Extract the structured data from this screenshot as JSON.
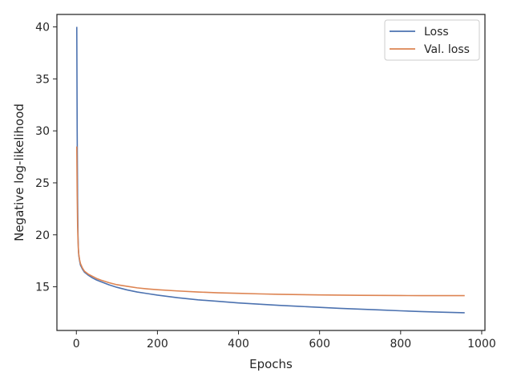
{
  "chart_data": {
    "type": "line",
    "xlabel": "Epochs",
    "ylabel": "Negative log-likelihood",
    "xlim": [
      -48,
      1008
    ],
    "ylim": [
      10.8,
      41.2
    ],
    "xticks": [
      0,
      200,
      400,
      600,
      800,
      1000
    ],
    "yticks": [
      15,
      20,
      25,
      30,
      35,
      40
    ],
    "grid": false,
    "legend_position": "top-right",
    "series": [
      {
        "name": "Loss",
        "color": "#4c72b0",
        "points": [
          [
            1,
            40.0
          ],
          [
            2,
            30.0
          ],
          [
            3,
            23.5
          ],
          [
            4,
            20.0
          ],
          [
            5,
            18.6
          ],
          [
            6,
            18.0
          ],
          [
            8,
            17.5
          ],
          [
            10,
            17.1
          ],
          [
            15,
            16.7
          ],
          [
            20,
            16.4
          ],
          [
            30,
            16.1
          ],
          [
            40,
            15.85
          ],
          [
            50,
            15.65
          ],
          [
            60,
            15.5
          ],
          [
            80,
            15.2
          ],
          [
            100,
            14.95
          ],
          [
            125,
            14.7
          ],
          [
            150,
            14.5
          ],
          [
            175,
            14.35
          ],
          [
            200,
            14.2
          ],
          [
            250,
            13.95
          ],
          [
            300,
            13.75
          ],
          [
            350,
            13.6
          ],
          [
            400,
            13.45
          ],
          [
            450,
            13.33
          ],
          [
            500,
            13.22
          ],
          [
            550,
            13.12
          ],
          [
            600,
            13.02
          ],
          [
            650,
            12.93
          ],
          [
            700,
            12.85
          ],
          [
            750,
            12.77
          ],
          [
            800,
            12.69
          ],
          [
            850,
            12.62
          ],
          [
            900,
            12.56
          ],
          [
            958,
            12.5
          ]
        ]
      },
      {
        "name": "Val. loss",
        "color": "#dd8452",
        "points": [
          [
            1,
            28.5
          ],
          [
            2,
            24.0
          ],
          [
            3,
            21.0
          ],
          [
            4,
            19.5
          ],
          [
            5,
            18.6
          ],
          [
            6,
            18.1
          ],
          [
            8,
            17.6
          ],
          [
            10,
            17.25
          ],
          [
            15,
            16.8
          ],
          [
            20,
            16.5
          ],
          [
            30,
            16.2
          ],
          [
            40,
            16.0
          ],
          [
            50,
            15.8
          ],
          [
            60,
            15.65
          ],
          [
            80,
            15.4
          ],
          [
            100,
            15.2
          ],
          [
            125,
            15.05
          ],
          [
            150,
            14.9
          ],
          [
            175,
            14.8
          ],
          [
            200,
            14.72
          ],
          [
            250,
            14.6
          ],
          [
            300,
            14.5
          ],
          [
            350,
            14.42
          ],
          [
            400,
            14.37
          ],
          [
            450,
            14.32
          ],
          [
            500,
            14.28
          ],
          [
            550,
            14.25
          ],
          [
            600,
            14.22
          ],
          [
            650,
            14.2
          ],
          [
            700,
            14.18
          ],
          [
            750,
            14.17
          ],
          [
            800,
            14.16
          ],
          [
            850,
            14.15
          ],
          [
            900,
            14.15
          ],
          [
            958,
            14.15
          ]
        ]
      }
    ]
  }
}
